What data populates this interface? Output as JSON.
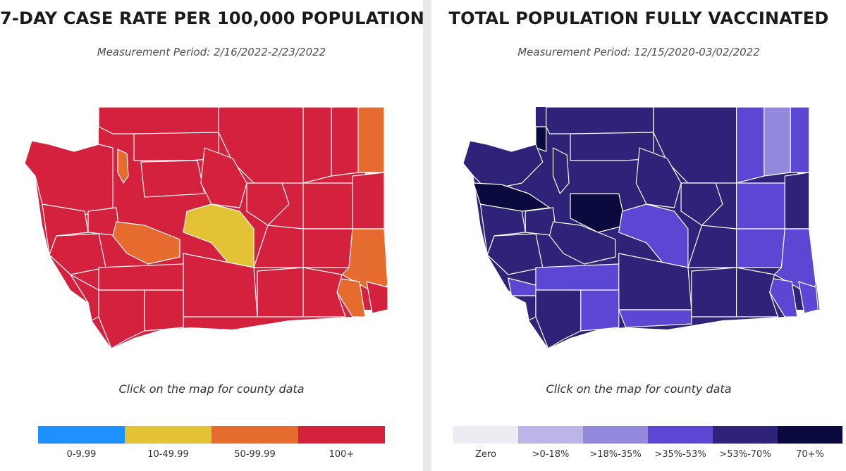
{
  "case_rate": {
    "title": "7-DAY CASE RATE PER 100,000 POPULATION",
    "period": "Measurement Period: 2/16/2022-2/23/2022",
    "hint": "Click on the map for county data",
    "colors": {
      "low": "#1e90ff",
      "mid": "#e3c236",
      "high": "#e56b2e",
      "top": "#d4213d"
    },
    "legend": [
      {
        "label": "0-9.99",
        "color": "#1e90ff"
      },
      {
        "label": "10-49.99",
        "color": "#e3c236"
      },
      {
        "label": "50-99.99",
        "color": "#e56b2e"
      },
      {
        "label": "100+",
        "color": "#d4213d"
      }
    ]
  },
  "vaccinated": {
    "title": "TOTAL POPULATION FULLY VACCINATED",
    "period": "Measurement Period: 12/15/2020-03/02/2022",
    "hint": "Click on the map for county data",
    "legend": [
      {
        "label": "Zero",
        "color": "#ececf3"
      },
      {
        "label": ">0-18%",
        "color": "#bcb5e8"
      },
      {
        "label": ">18%-35%",
        "color": "#9389dc"
      },
      {
        "label": ">35%-53%",
        "color": "#5b47d3"
      },
      {
        "label": ">53%-70%",
        "color": "#2e2379"
      },
      {
        "label": "70+%",
        "color": "#0a0a3e"
      }
    ]
  }
}
